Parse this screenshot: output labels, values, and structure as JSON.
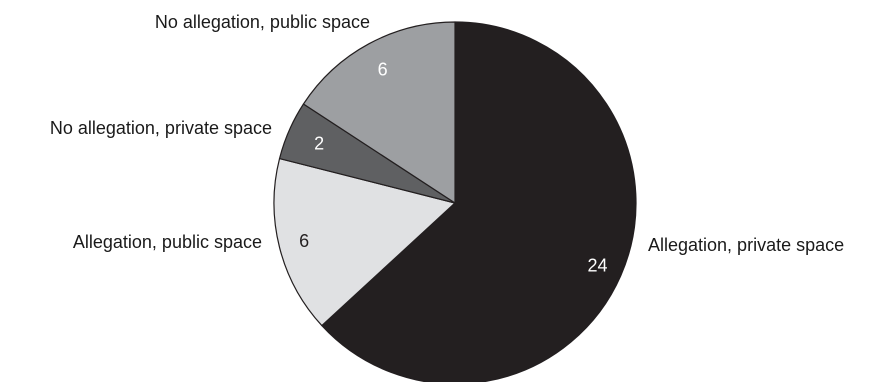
{
  "chart_data": {
    "type": "pie",
    "title": "",
    "slices": [
      {
        "label": "Allegation, private space",
        "value": 24,
        "color": "#231f20",
        "value_color": "#ffffff"
      },
      {
        "label": "Allegation, public space",
        "value": 6,
        "color": "#e0e1e3",
        "value_color": "#231f20"
      },
      {
        "label": "No allegation, private space",
        "value": 2,
        "color": "#5f6062",
        "value_color": "#ffffff"
      },
      {
        "label": "No allegation, public space",
        "value": 6,
        "color": "#9d9fa2",
        "value_color": "#ffffff"
      }
    ],
    "start": "12 o'clock",
    "direction": "clockwise",
    "legend": "none"
  }
}
